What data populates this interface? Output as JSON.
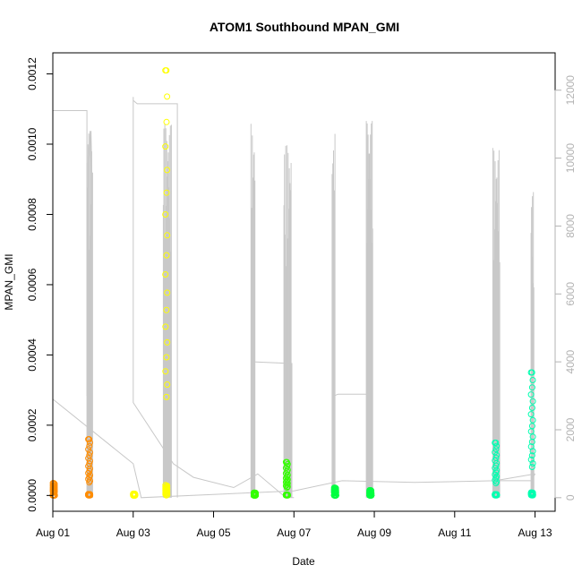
{
  "chart_data": {
    "type": "scatter",
    "title": "ATOM1 Southbound MPAN_GMI",
    "xlabel": "Date",
    "ylabel": "MPAN_GMI",
    "x_ticks": [
      "Aug 01",
      "Aug 03",
      "Aug 05",
      "Aug 07",
      "Aug 09",
      "Aug 11",
      "Aug 13"
    ],
    "y_ticks": [
      "0.0000",
      "0.0002",
      "0.0004",
      "0.0006",
      "0.0008",
      "0.0010",
      "0.0012"
    ],
    "y2_ticks": [
      "0",
      "2000",
      "4000",
      "6000",
      "8000",
      "10000",
      "12000"
    ],
    "xlim": [
      0,
      12.5
    ],
    "ylim": [
      -4.5e-05,
      0.00126
    ],
    "y2lim": [
      -400,
      13100
    ],
    "grid": false,
    "colors": {
      "altitude_line": "#c8c8c8",
      "right_axis": "#b3b3b3",
      "bursts": [
        "#ff8c00",
        "#ff8c00",
        "#ffff00",
        "#ffff00",
        "#33ff00",
        "#33ff00",
        "#00ff40",
        "#00ff40",
        "#00ffb0",
        "#00ffb0"
      ]
    },
    "series": [
      {
        "x_dates": [
          "Aug 01",
          "Aug 02",
          "Aug 03",
          "Aug 03",
          "Aug 06",
          "Aug 06",
          "Aug 08",
          "Aug 08",
          "Aug 12",
          "Aug 12"
        ],
        "x_offsets_days": [
          0.0,
          0.88,
          2.0,
          2.8,
          5.0,
          5.8,
          7.0,
          7.88,
          11.0,
          11.9
        ],
        "mpan_max": [
          3.5e-05,
          0.00016,
          5e-06,
          0.00121,
          8e-06,
          9.5e-05,
          2.2e-05,
          1.5e-05,
          0.00015,
          0.00035
        ]
      }
    ]
  }
}
